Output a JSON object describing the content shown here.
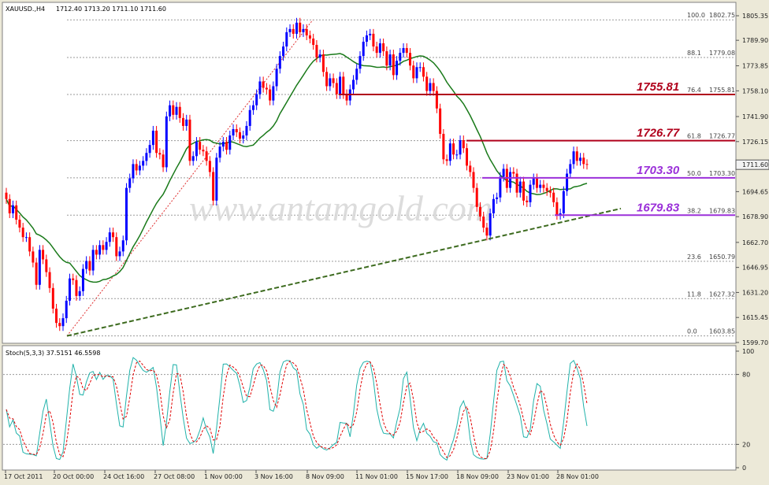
{
  "chart_data": [
    {
      "type": "candlestick",
      "symbol": "XAUUSD.,H4",
      "ohlc_header": "1712.40 1713.20 1711.10 1711.60",
      "current_price": 1711.6,
      "ylim": [
        1599.7,
        1811
      ],
      "y_ticks": [
        "1805.35",
        "1789.90",
        "1773.85",
        "1758.10",
        "1741.90",
        "1726.15",
        "1710.35",
        "1694.65",
        "1678.90",
        "1662.70",
        "1646.95",
        "1631.20",
        "1615.45",
        "1599.70"
      ],
      "x_ticks": [
        "17 Oct 2011",
        "20 Oct 00:00",
        "24 Oct 16:00",
        "27 Oct 08:00",
        "1 Nov 00:00",
        "3 Nov 16:00",
        "8 Nov 09:00",
        "11 Nov 01:00",
        "15 Nov 17:00",
        "18 Nov 09:00",
        "23 Nov 01:00",
        "28 Nov 01:00"
      ],
      "fib_levels": [
        {
          "ratio": "100.0",
          "price": "1802.75",
          "value": 1802.75
        },
        {
          "ratio": "88.1",
          "price": "1779.08",
          "value": 1779.08
        },
        {
          "ratio": "76.4",
          "price": "1755.81",
          "value": 1755.81
        },
        {
          "ratio": "61.8",
          "price": "1726.77",
          "value": 1726.77
        },
        {
          "ratio": "50.0",
          "price": "1703.30",
          "value": 1703.3
        },
        {
          "ratio": "38.2",
          "price": "1679.83",
          "value": 1679.83
        },
        {
          "ratio": "23.6",
          "price": "1650.79",
          "value": 1650.79
        },
        {
          "ratio": "11.8",
          "price": "1627.32",
          "value": 1627.32
        },
        {
          "ratio": "0.0",
          "price": "1603.85",
          "value": 1603.85
        }
      ],
      "levels": [
        {
          "label": "1755.81",
          "value": 1755.81,
          "color": "#b0001b"
        },
        {
          "label": "1726.77",
          "value": 1726.77,
          "color": "#b0001b"
        },
        {
          "label": "1703.30",
          "value": 1703.3,
          "color": "#9b30d9"
        },
        {
          "label": "1679.83",
          "value": 1679.83,
          "color": "#9b30d9"
        }
      ],
      "trendline": {
        "from": 1603.85,
        "to": 1684
      },
      "close": [
        1690,
        1681,
        1686,
        1677,
        1672,
        1666,
        1666,
        1657,
        1650,
        1636,
        1658,
        1652,
        1644,
        1634,
        1621,
        1612,
        1610,
        1615,
        1626,
        1640,
        1639,
        1629,
        1632,
        1646,
        1651,
        1645,
        1658,
        1655,
        1661,
        1658,
        1663,
        1669,
        1666,
        1654,
        1657,
        1664,
        1697,
        1703,
        1712,
        1708,
        1711,
        1714,
        1719,
        1724,
        1733,
        1719,
        1718,
        1710,
        1742,
        1749,
        1743,
        1748,
        1741,
        1736,
        1740,
        1714,
        1717,
        1726,
        1721,
        1720,
        1714,
        1707,
        1689,
        1716,
        1723,
        1726,
        1721,
        1730,
        1734,
        1732,
        1728,
        1730,
        1736,
        1746,
        1749,
        1756,
        1764,
        1760,
        1759,
        1752,
        1761,
        1772,
        1780,
        1786,
        1795,
        1797,
        1794,
        1801,
        1795,
        1797,
        1793,
        1791,
        1787,
        1779,
        1781,
        1770,
        1761,
        1766,
        1763,
        1756,
        1767,
        1756,
        1752,
        1759,
        1765,
        1772,
        1780,
        1789,
        1793,
        1794,
        1786,
        1782,
        1788,
        1783,
        1774,
        1781,
        1768,
        1777,
        1782,
        1785,
        1782,
        1774,
        1766,
        1773,
        1773,
        1767,
        1758,
        1763,
        1758,
        1747,
        1731,
        1715,
        1714,
        1725,
        1718,
        1718,
        1727,
        1722,
        1711,
        1707,
        1697,
        1685,
        1679,
        1672,
        1667,
        1681,
        1690,
        1691,
        1704,
        1709,
        1697,
        1707,
        1706,
        1694,
        1701,
        1689,
        1688,
        1699,
        1703,
        1697,
        1699,
        1697,
        1695,
        1694,
        1688,
        1680,
        1681,
        1695,
        1706,
        1712,
        1720,
        1714,
        1716,
        1712,
        1711.6
      ],
      "ma_period_note": "green moving average",
      "stochastic": {
        "label": "Stoch(5,3,3) 37.5151 46.5598",
        "k": 37.5151,
        "d": 46.5598,
        "ylim": [
          0,
          100
        ],
        "y_ticks": [
          "100",
          "80",
          "20",
          "0"
        ],
        "levels": [
          80,
          20
        ]
      }
    }
  ],
  "watermark": "www.antamgold.com"
}
